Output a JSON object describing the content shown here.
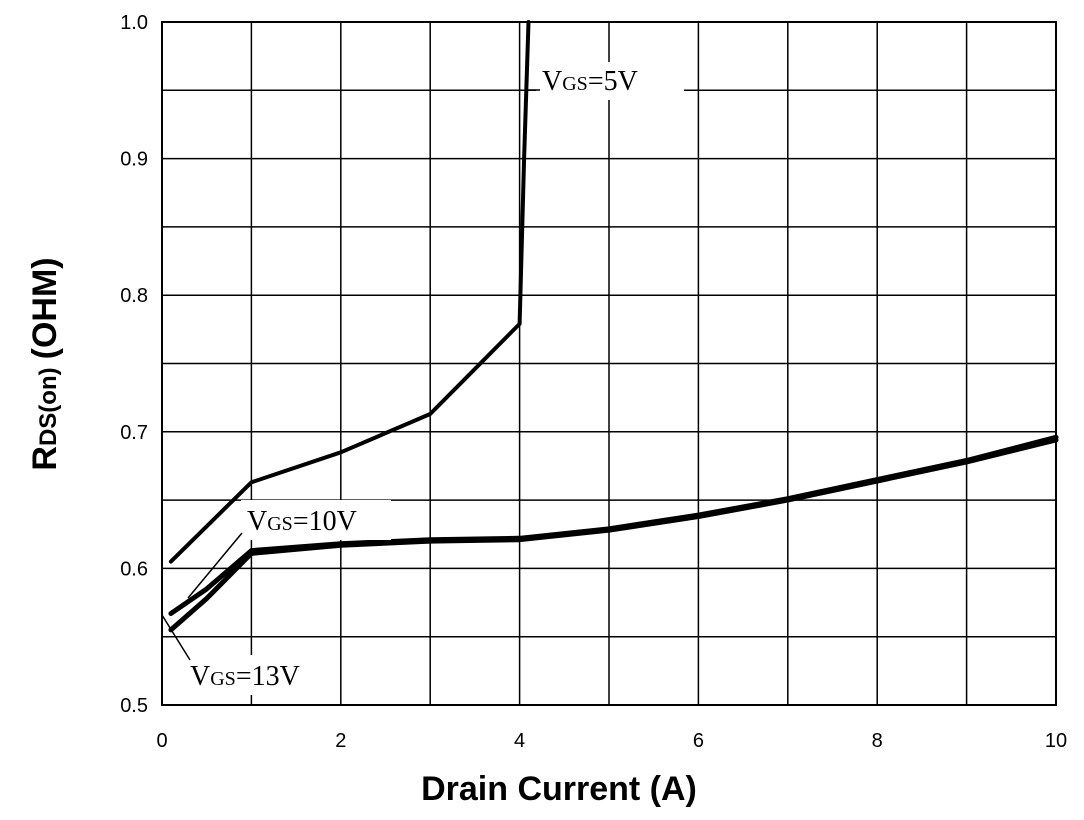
{
  "chart_data": {
    "type": "line",
    "title": "",
    "xlabel": "Drain Current (A)",
    "ylabel": {
      "main": "R",
      "sub": "DS(on)",
      "unit": "(OHM)"
    },
    "xlim": [
      0,
      10
    ],
    "ylim": [
      0.5,
      1.0
    ],
    "x_ticks": [
      0,
      2,
      4,
      6,
      8,
      10
    ],
    "x_tick_labels": [
      "0",
      "2",
      "4",
      "6",
      "8",
      "10"
    ],
    "x_grid": [
      0,
      1,
      2,
      3,
      4,
      5,
      6,
      7,
      8,
      9,
      10
    ],
    "y_ticks": [
      0.5,
      0.6,
      0.7,
      0.8,
      0.9,
      1.0
    ],
    "y_tick_labels": [
      "0.5",
      "0.6",
      "0.7",
      "0.8",
      "0.9",
      "1.0"
    ],
    "y_grid": [
      0.5,
      0.55,
      0.6,
      0.65,
      0.7,
      0.75,
      0.8,
      0.85,
      0.9,
      0.95,
      1.0
    ],
    "grid": true,
    "series": [
      {
        "name": "VGS=5V",
        "label_main": "V",
        "label_sub": "GS",
        "label_rest": "=5V",
        "x": [
          0.1,
          1.0,
          2.0,
          3.0,
          4.0,
          4.05,
          4.1
        ],
        "y": [
          0.605,
          0.663,
          0.685,
          0.713,
          0.779,
          0.9,
          1.0
        ]
      },
      {
        "name": "VGS=10V",
        "label_main": "V",
        "label_sub": "GS",
        "label_rest": "=10V",
        "x": [
          0.1,
          0.5,
          1.0,
          2.0,
          3.0,
          4.0,
          5.0,
          6.0,
          7.0,
          8.0,
          9.0,
          10.0
        ],
        "y": [
          0.567,
          0.585,
          0.613,
          0.618,
          0.621,
          0.622,
          0.629,
          0.639,
          0.651,
          0.665,
          0.679,
          0.696
        ]
      },
      {
        "name": "VGS=13V",
        "label_main": "V",
        "label_sub": "GS",
        "label_rest": "=13V",
        "x": [
          0.1,
          0.5,
          1.0,
          2.0,
          3.0,
          4.0,
          5.0,
          6.0,
          7.0,
          8.0,
          9.0,
          10.0
        ],
        "y": [
          0.555,
          0.578,
          0.611,
          0.617,
          0.62,
          0.621,
          0.628,
          0.638,
          0.65,
          0.664,
          0.678,
          0.694
        ]
      }
    ]
  }
}
